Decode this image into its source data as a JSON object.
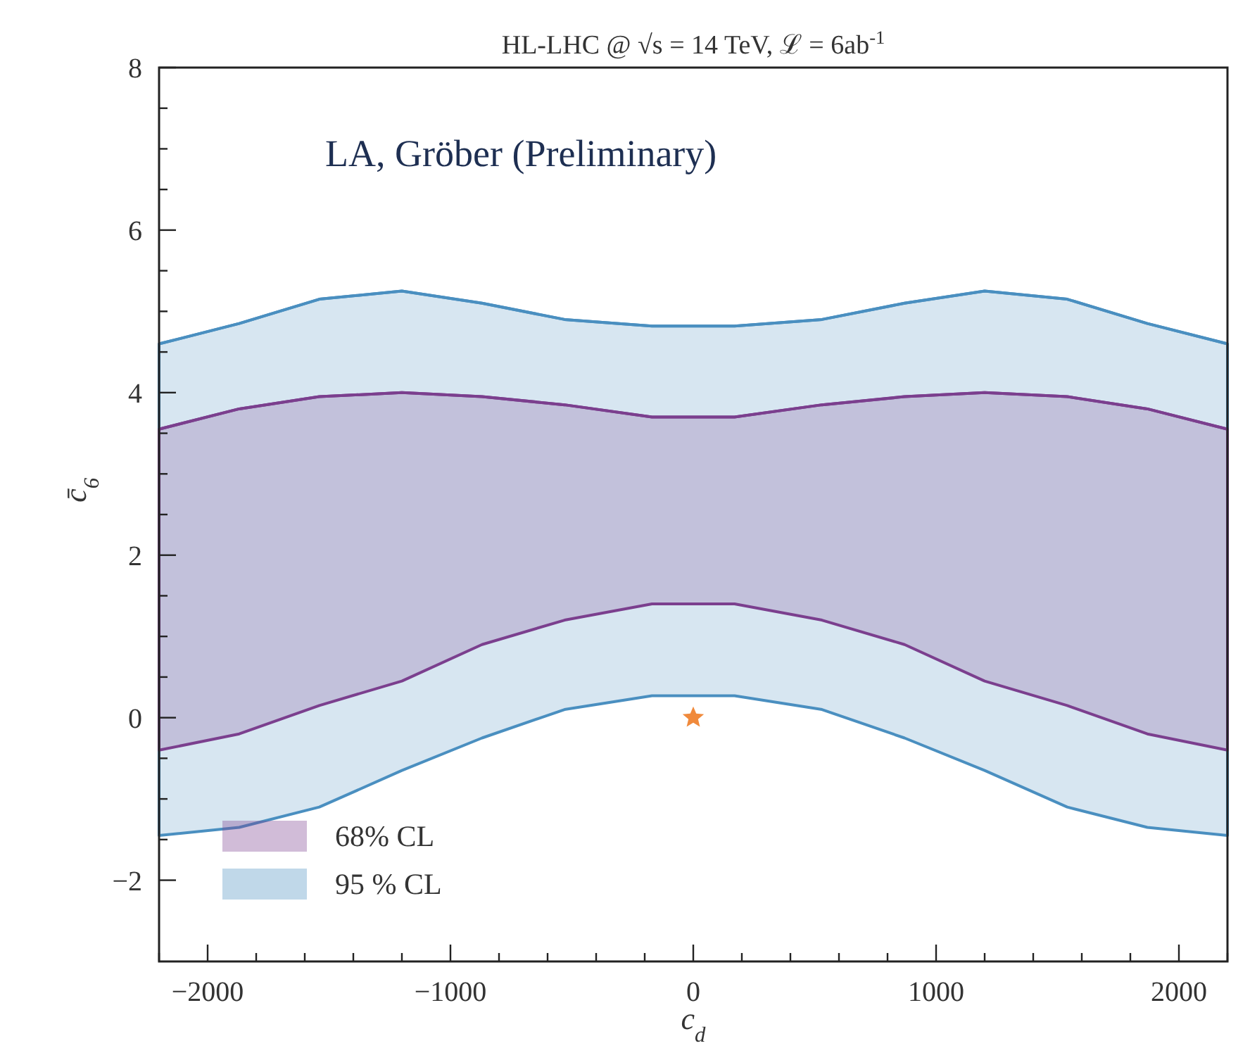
{
  "chart_data": {
    "type": "line",
    "title": "HL-LHC @ √s = 14 TeV, ℒ = 6ab$^{-1}$",
    "xlabel": "c$_{d}$",
    "ylabel": "c̄$_{6}$",
    "annotations": [
      "LA, Gröber (Preliminary)"
    ],
    "x": [
      -2200,
      -1870,
      -1540,
      -1200,
      -870,
      -530,
      -170,
      170,
      530,
      870,
      1200,
      1540,
      1870,
      2200
    ],
    "series": [
      {
        "name": "68% CL",
        "color": "#7b3f8e",
        "values": [
          3.55,
          3.8,
          3.95,
          4.0,
          3.95,
          3.85,
          3.7,
          3.7,
          3.85,
          3.95,
          4.0,
          3.95,
          3.8,
          3.55
        ],
        "upper": [
          3.55,
          3.8,
          3.95,
          4.0,
          3.95,
          3.85,
          3.7,
          3.7,
          3.85,
          3.95,
          4.0,
          3.95,
          3.8,
          3.55
        ],
        "lower": [
          -0.4,
          -0.2,
          0.15,
          0.45,
          0.9,
          1.2,
          1.4,
          1.4,
          1.2,
          0.9,
          0.45,
          0.15,
          -0.2,
          -0.4
        ]
      },
      {
        "name": "95 % CL",
        "color": "#4a8fc0",
        "values": [
          4.6,
          4.85,
          5.15,
          5.25,
          5.1,
          4.9,
          4.82,
          4.82,
          4.9,
          5.1,
          5.25,
          5.15,
          4.85,
          4.6
        ],
        "upper": [
          4.6,
          4.85,
          5.15,
          5.25,
          5.1,
          4.9,
          4.82,
          4.82,
          4.9,
          5.1,
          5.25,
          5.15,
          4.85,
          4.6
        ],
        "lower": [
          -1.45,
          -1.35,
          -1.1,
          -0.65,
          -0.25,
          0.1,
          0.27,
          0.27,
          0.1,
          -0.25,
          -0.65,
          -1.1,
          -1.35,
          -1.45
        ]
      },
      {
        "type": "scatter",
        "color": "#f08a3c",
        "x": [
          0
        ],
        "values": [
          0
        ],
        "marker": "star"
      }
    ],
    "xlim": [
      -2200,
      2200
    ],
    "ylim": [
      -3,
      8
    ],
    "xticks": [
      {
        "value": -2200,
        "label": null
      },
      -2000,
      {
        "value": -1800,
        "label": null
      },
      {
        "value": -1600,
        "label": null
      },
      {
        "value": -1400,
        "label": null
      },
      {
        "value": -1200,
        "label": null
      },
      -1000,
      {
        "value": -800,
        "label": null
      },
      {
        "value": -600,
        "label": null
      },
      {
        "value": -400,
        "label": null
      },
      {
        "value": -200,
        "label": null
      },
      0,
      {
        "value": 200,
        "label": null
      },
      {
        "value": 400,
        "label": null
      },
      {
        "value": 600,
        "label": null
      },
      {
        "value": 800,
        "label": null
      },
      1000,
      {
        "value": 1200,
        "label": null
      },
      {
        "value": 1400,
        "label": null
      },
      {
        "value": 1600,
        "label": null
      },
      {
        "value": 1800,
        "label": null
      },
      2000,
      {
        "value": 2200,
        "label": null
      }
    ],
    "yticks": [
      -2,
      {
        "value": -1.5,
        "label": null
      },
      {
        "value": -1,
        "label": null
      },
      {
        "value": -0.5,
        "label": null
      },
      0,
      {
        "value": 0.5,
        "label": null
      },
      {
        "value": 1,
        "label": null
      },
      {
        "value": 1.5,
        "label": null
      },
      2,
      {
        "value": 2.5,
        "label": null
      },
      {
        "value": 3,
        "label": null
      },
      {
        "value": 3.5,
        "label": null
      },
      4,
      {
        "value": 4.5,
        "label": null
      },
      {
        "value": 5,
        "label": null
      },
      {
        "value": 5.5,
        "label": null
      },
      6,
      {
        "value": 6.5,
        "label": null
      },
      {
        "value": 7,
        "label": null
      },
      {
        "value": 7.5,
        "label": null
      },
      8
    ],
    "grid": false,
    "legend": "bottom left"
  }
}
